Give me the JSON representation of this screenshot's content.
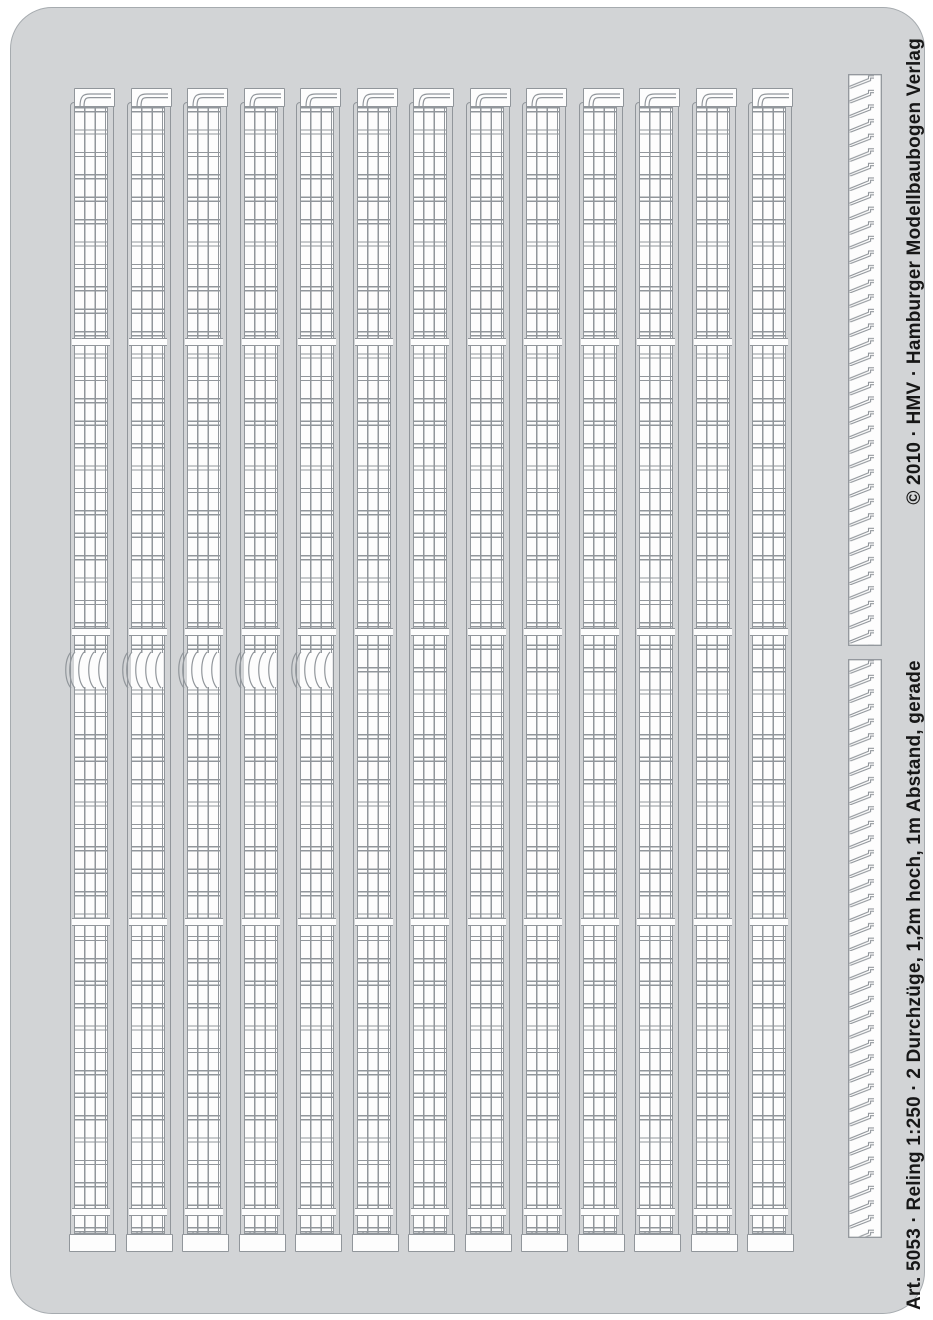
{
  "sheet": {
    "description": "photo-etched railing fret",
    "side_text": {
      "article_line": "Art. 5053 · Reling 1:250 · 2 Durchzüge, 1,2m hoch, 1m Abstand, gerade",
      "publisher_line": "© 2010 · HMV · Hamburger Modellbaubogen Verlag"
    }
  },
  "parts": {
    "railing_strip_count": 13,
    "curved_joint_strip_count": 5,
    "stanchion_combs": [
      {
        "teeth": 39
      },
      {
        "teeth": 40
      }
    ]
  },
  "colors": {
    "sheet_gray": "#d2d4d6",
    "etch_line_gray": "#91969b",
    "part_white": "#fdfdfd",
    "sheet_outline": "#a6abaf",
    "text_black": "#171717"
  }
}
